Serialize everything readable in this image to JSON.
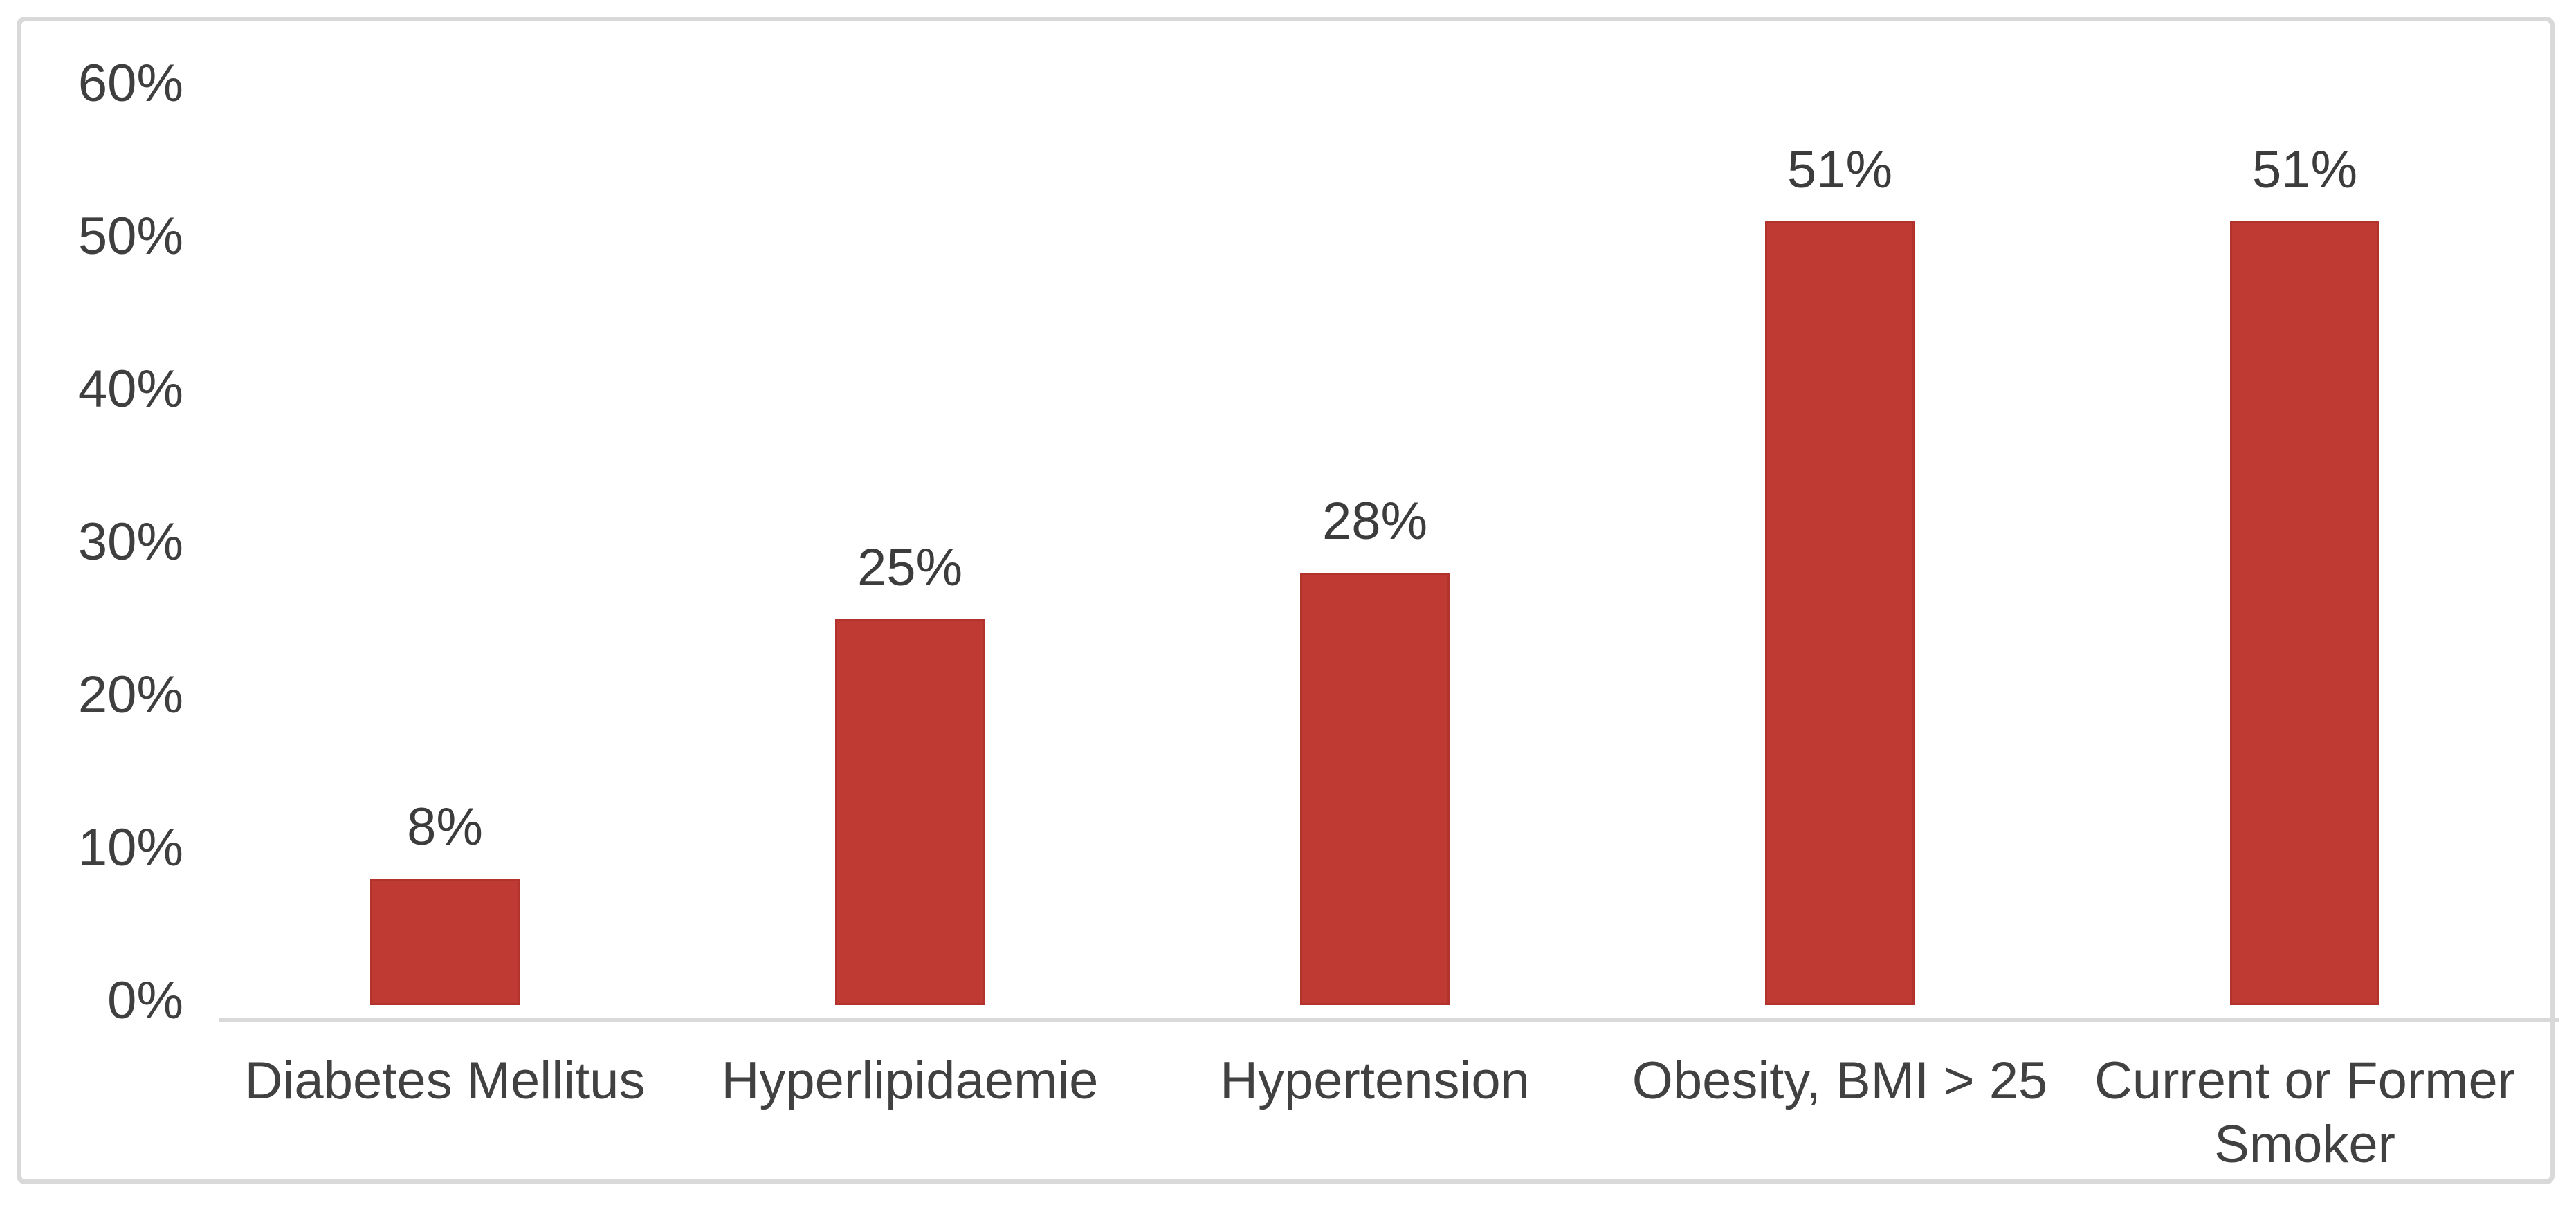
{
  "chart_data": {
    "type": "bar",
    "title": "",
    "categories": [
      "Diabetes Mellitus",
      "Hyperlipidaemie",
      "Hypertension",
      "Obesity, BMI > 25",
      "Current or Former Smoker"
    ],
    "values": [
      8,
      25,
      28,
      51,
      51
    ],
    "data_labels": [
      "8%",
      "25%",
      "28%",
      "51%",
      "51%"
    ],
    "series_name": "",
    "xlabel": "",
    "ylabel": "",
    "y_axis": {
      "min": 0,
      "max": 60,
      "ticks": [
        {
          "label": "0%",
          "value": 0
        },
        {
          "label": "10%",
          "value": 10
        },
        {
          "label": "20%",
          "value": 20
        },
        {
          "label": "30%",
          "value": 30
        },
        {
          "label": "40%",
          "value": 40
        },
        {
          "label": "50%",
          "value": 50
        },
        {
          "label": "60%",
          "value": 60
        }
      ]
    },
    "legend": "none",
    "grid": "off",
    "colors": {
      "bar": "#be3a33",
      "bar_edge": "#a33029",
      "axis_line": "#d9d9d9",
      "text": "#3f3f3f",
      "frame_border": "#d9d9d9",
      "background": "#ffffff"
    }
  }
}
